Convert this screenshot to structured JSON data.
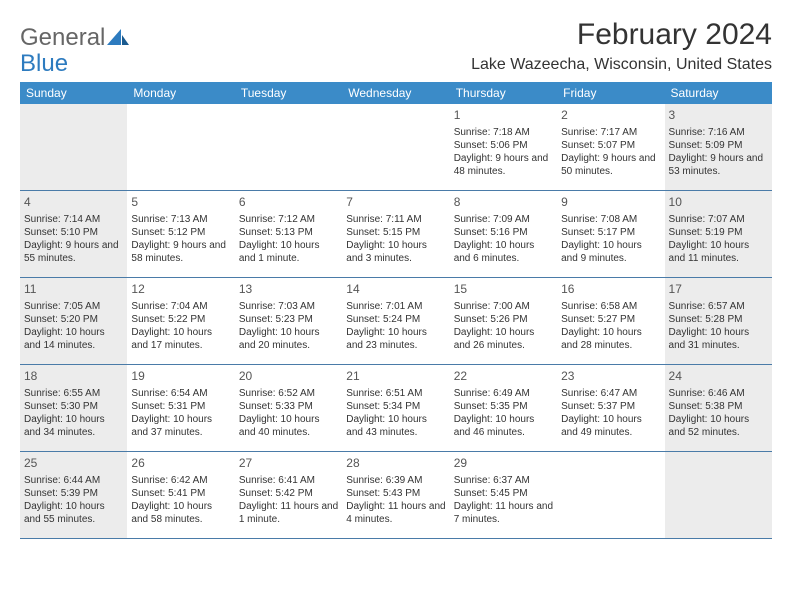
{
  "logo": {
    "general": "General",
    "blue": "Blue"
  },
  "title": "February 2024",
  "location": "Lake Wazeecha, Wisconsin, United States",
  "colors": {
    "header_bg": "#3b8bc8",
    "header_text": "#ffffff",
    "rule": "#4a7ba8",
    "shaded_bg": "#ececec",
    "body_text": "#333333",
    "logo_blue": "#2d7bbf",
    "logo_gray": "#666666"
  },
  "day_names": [
    "Sunday",
    "Monday",
    "Tuesday",
    "Wednesday",
    "Thursday",
    "Friday",
    "Saturday"
  ],
  "weeks": [
    [
      {
        "num": "",
        "sunrise": "",
        "sunset": "",
        "daylight": "",
        "shaded": true
      },
      {
        "num": "",
        "sunrise": "",
        "sunset": "",
        "daylight": "",
        "shaded": false
      },
      {
        "num": "",
        "sunrise": "",
        "sunset": "",
        "daylight": "",
        "shaded": false
      },
      {
        "num": "",
        "sunrise": "",
        "sunset": "",
        "daylight": "",
        "shaded": false
      },
      {
        "num": "1",
        "sunrise": "Sunrise: 7:18 AM",
        "sunset": "Sunset: 5:06 PM",
        "daylight": "Daylight: 9 hours and 48 minutes.",
        "shaded": false
      },
      {
        "num": "2",
        "sunrise": "Sunrise: 7:17 AM",
        "sunset": "Sunset: 5:07 PM",
        "daylight": "Daylight: 9 hours and 50 minutes.",
        "shaded": false
      },
      {
        "num": "3",
        "sunrise": "Sunrise: 7:16 AM",
        "sunset": "Sunset: 5:09 PM",
        "daylight": "Daylight: 9 hours and 53 minutes.",
        "shaded": true
      }
    ],
    [
      {
        "num": "4",
        "sunrise": "Sunrise: 7:14 AM",
        "sunset": "Sunset: 5:10 PM",
        "daylight": "Daylight: 9 hours and 55 minutes.",
        "shaded": true
      },
      {
        "num": "5",
        "sunrise": "Sunrise: 7:13 AM",
        "sunset": "Sunset: 5:12 PM",
        "daylight": "Daylight: 9 hours and 58 minutes.",
        "shaded": false
      },
      {
        "num": "6",
        "sunrise": "Sunrise: 7:12 AM",
        "sunset": "Sunset: 5:13 PM",
        "daylight": "Daylight: 10 hours and 1 minute.",
        "shaded": false
      },
      {
        "num": "7",
        "sunrise": "Sunrise: 7:11 AM",
        "sunset": "Sunset: 5:15 PM",
        "daylight": "Daylight: 10 hours and 3 minutes.",
        "shaded": false
      },
      {
        "num": "8",
        "sunrise": "Sunrise: 7:09 AM",
        "sunset": "Sunset: 5:16 PM",
        "daylight": "Daylight: 10 hours and 6 minutes.",
        "shaded": false
      },
      {
        "num": "9",
        "sunrise": "Sunrise: 7:08 AM",
        "sunset": "Sunset: 5:17 PM",
        "daylight": "Daylight: 10 hours and 9 minutes.",
        "shaded": false
      },
      {
        "num": "10",
        "sunrise": "Sunrise: 7:07 AM",
        "sunset": "Sunset: 5:19 PM",
        "daylight": "Daylight: 10 hours and 11 minutes.",
        "shaded": true
      }
    ],
    [
      {
        "num": "11",
        "sunrise": "Sunrise: 7:05 AM",
        "sunset": "Sunset: 5:20 PM",
        "daylight": "Daylight: 10 hours and 14 minutes.",
        "shaded": true
      },
      {
        "num": "12",
        "sunrise": "Sunrise: 7:04 AM",
        "sunset": "Sunset: 5:22 PM",
        "daylight": "Daylight: 10 hours and 17 minutes.",
        "shaded": false
      },
      {
        "num": "13",
        "sunrise": "Sunrise: 7:03 AM",
        "sunset": "Sunset: 5:23 PM",
        "daylight": "Daylight: 10 hours and 20 minutes.",
        "shaded": false
      },
      {
        "num": "14",
        "sunrise": "Sunrise: 7:01 AM",
        "sunset": "Sunset: 5:24 PM",
        "daylight": "Daylight: 10 hours and 23 minutes.",
        "shaded": false
      },
      {
        "num": "15",
        "sunrise": "Sunrise: 7:00 AM",
        "sunset": "Sunset: 5:26 PM",
        "daylight": "Daylight: 10 hours and 26 minutes.",
        "shaded": false
      },
      {
        "num": "16",
        "sunrise": "Sunrise: 6:58 AM",
        "sunset": "Sunset: 5:27 PM",
        "daylight": "Daylight: 10 hours and 28 minutes.",
        "shaded": false
      },
      {
        "num": "17",
        "sunrise": "Sunrise: 6:57 AM",
        "sunset": "Sunset: 5:28 PM",
        "daylight": "Daylight: 10 hours and 31 minutes.",
        "shaded": true
      }
    ],
    [
      {
        "num": "18",
        "sunrise": "Sunrise: 6:55 AM",
        "sunset": "Sunset: 5:30 PM",
        "daylight": "Daylight: 10 hours and 34 minutes.",
        "shaded": true
      },
      {
        "num": "19",
        "sunrise": "Sunrise: 6:54 AM",
        "sunset": "Sunset: 5:31 PM",
        "daylight": "Daylight: 10 hours and 37 minutes.",
        "shaded": false
      },
      {
        "num": "20",
        "sunrise": "Sunrise: 6:52 AM",
        "sunset": "Sunset: 5:33 PM",
        "daylight": "Daylight: 10 hours and 40 minutes.",
        "shaded": false
      },
      {
        "num": "21",
        "sunrise": "Sunrise: 6:51 AM",
        "sunset": "Sunset: 5:34 PM",
        "daylight": "Daylight: 10 hours and 43 minutes.",
        "shaded": false
      },
      {
        "num": "22",
        "sunrise": "Sunrise: 6:49 AM",
        "sunset": "Sunset: 5:35 PM",
        "daylight": "Daylight: 10 hours and 46 minutes.",
        "shaded": false
      },
      {
        "num": "23",
        "sunrise": "Sunrise: 6:47 AM",
        "sunset": "Sunset: 5:37 PM",
        "daylight": "Daylight: 10 hours and 49 minutes.",
        "shaded": false
      },
      {
        "num": "24",
        "sunrise": "Sunrise: 6:46 AM",
        "sunset": "Sunset: 5:38 PM",
        "daylight": "Daylight: 10 hours and 52 minutes.",
        "shaded": true
      }
    ],
    [
      {
        "num": "25",
        "sunrise": "Sunrise: 6:44 AM",
        "sunset": "Sunset: 5:39 PM",
        "daylight": "Daylight: 10 hours and 55 minutes.",
        "shaded": true
      },
      {
        "num": "26",
        "sunrise": "Sunrise: 6:42 AM",
        "sunset": "Sunset: 5:41 PM",
        "daylight": "Daylight: 10 hours and 58 minutes.",
        "shaded": false
      },
      {
        "num": "27",
        "sunrise": "Sunrise: 6:41 AM",
        "sunset": "Sunset: 5:42 PM",
        "daylight": "Daylight: 11 hours and 1 minute.",
        "shaded": false
      },
      {
        "num": "28",
        "sunrise": "Sunrise: 6:39 AM",
        "sunset": "Sunset: 5:43 PM",
        "daylight": "Daylight: 11 hours and 4 minutes.",
        "shaded": false
      },
      {
        "num": "29",
        "sunrise": "Sunrise: 6:37 AM",
        "sunset": "Sunset: 5:45 PM",
        "daylight": "Daylight: 11 hours and 7 minutes.",
        "shaded": false
      },
      {
        "num": "",
        "sunrise": "",
        "sunset": "",
        "daylight": "",
        "shaded": false
      },
      {
        "num": "",
        "sunrise": "",
        "sunset": "",
        "daylight": "",
        "shaded": true
      }
    ]
  ]
}
